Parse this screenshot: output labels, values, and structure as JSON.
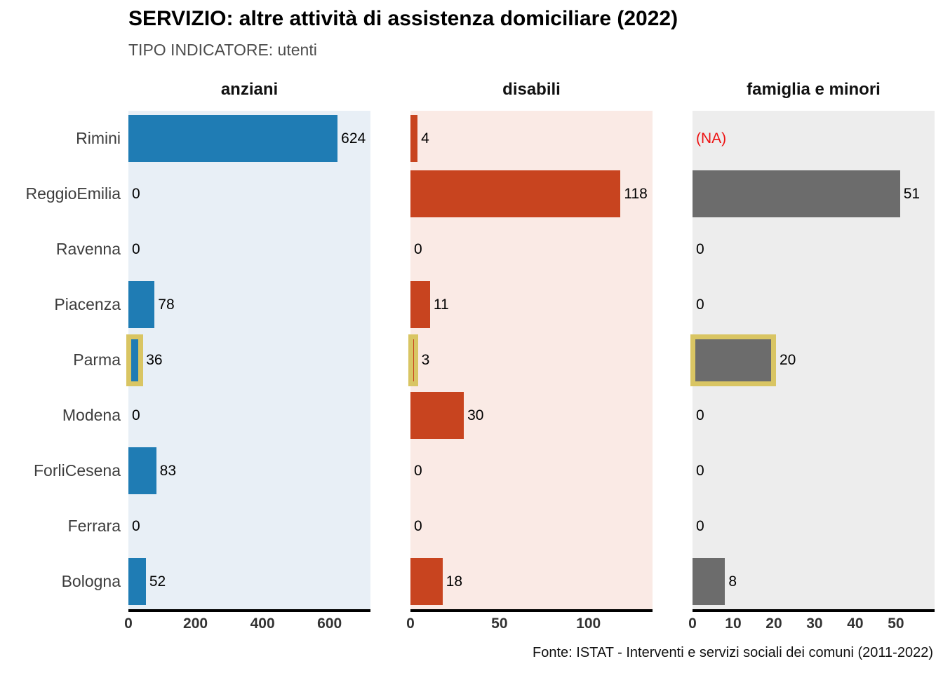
{
  "title": "SERVIZIO: altre attività di assistenza domiciliare (2022)",
  "subtitle": "TIPO INDICATORE: utenti",
  "caption": "Fonte: ISTAT - Interventi e servizi sociali dei comuni (2011-2022)",
  "na_label": "(NA)",
  "colors": {
    "na_text": "#ed1111",
    "axis_line": "#000000",
    "row_label_text": "#3d3d3d",
    "tick_text": "#333333",
    "subtitle_text": "#4d4d4d",
    "highlight_outline": "#d9c563"
  },
  "chart_data": {
    "type": "bar",
    "orientation": "horizontal",
    "title": "SERVIZIO: altre attività di assistenza domiciliare (2022)",
    "subtitle": "TIPO INDICATORE: utenti",
    "caption": "Fonte: ISTAT - Interventi e servizi sociali dei comuni (2011-2022)",
    "legend": "none",
    "value_labels": true,
    "grid": false,
    "highlighted_category": "Parma",
    "categories": [
      "Rimini",
      "ReggioEmilia",
      "Ravenna",
      "Piacenza",
      "Parma",
      "Modena",
      "ForliCesena",
      "Ferrara",
      "Bologna"
    ],
    "facets": [
      {
        "name": "anziani",
        "values": [
          624,
          0,
          0,
          78,
          36,
          0,
          83,
          0,
          52
        ],
        "axis_ticks": [
          0,
          200,
          400,
          600
        ],
        "axis_max": 722,
        "bar_color": "#1f7cb4",
        "bg_color": "#e8eff6"
      },
      {
        "name": "disabili",
        "values": [
          4,
          118,
          0,
          11,
          3,
          30,
          0,
          0,
          18
        ],
        "axis_ticks": [
          0,
          50,
          100
        ],
        "axis_max": 136,
        "bar_color": "#c8441f",
        "bg_color": "#faeae5"
      },
      {
        "name": "famiglia e minori",
        "values": [
          null,
          51,
          0,
          0,
          20,
          0,
          0,
          0,
          8
        ],
        "axis_ticks": [
          0,
          10,
          20,
          30,
          40,
          50
        ],
        "axis_max": 59.5,
        "bar_color": "#6c6c6c",
        "bg_color": "#ededed"
      }
    ]
  }
}
